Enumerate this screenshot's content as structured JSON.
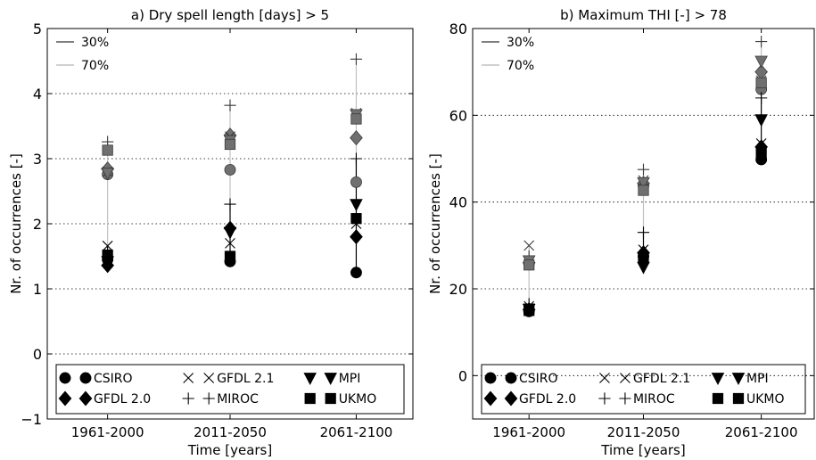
{
  "chart_data": [
    {
      "type": "scatter",
      "title": "a) Dry spell length [days] > 5",
      "xlabel": "Time [years]",
      "ylabel": "Nr. of occurrences [-]",
      "ylim": [
        -1,
        5
      ],
      "yticks": [
        "−1",
        "0",
        "1",
        "2",
        "3",
        "4",
        "5"
      ],
      "categories": [
        "1961-2000",
        "2011-2050",
        "2061-2100"
      ],
      "grid": "horizontal dotted",
      "legend_lines": [
        {
          "label": "30%",
          "color": "#555555"
        },
        {
          "label": "70%",
          "color": "#c0c0c0"
        }
      ],
      "series": [
        {
          "name": "CSIRO",
          "marker": "circle",
          "p30": [
            1.45,
            1.42,
            1.25
          ],
          "p70": [
            2.76,
            2.83,
            2.64
          ]
        },
        {
          "name": "GFDL 2.0",
          "marker": "diamond",
          "p30": [
            1.36,
            1.93,
            1.8
          ],
          "p70": [
            2.84,
            3.36,
            3.32
          ]
        },
        {
          "name": "GFDL 2.1",
          "marker": "x",
          "p30": [
            1.66,
            1.7,
            2.0
          ],
          "p70": [
            2.8,
            3.34,
            3.7
          ]
        },
        {
          "name": "MIROC",
          "marker": "plus",
          "p30": [
            1.5,
            2.3,
            3.0
          ],
          "p70": [
            3.26,
            3.82,
            4.53
          ]
        },
        {
          "name": "MPI",
          "marker": "triangle-down",
          "p30": [
            1.42,
            1.87,
            2.3
          ],
          "p70": [
            2.78,
            3.28,
            3.68
          ]
        },
        {
          "name": "UKMO",
          "marker": "square",
          "p30": [
            1.52,
            1.5,
            2.08
          ],
          "p70": [
            3.13,
            3.22,
            3.61
          ]
        }
      ]
    },
    {
      "type": "scatter",
      "title": "b) Maximum THI [-] > 78",
      "xlabel": "Time [years]",
      "ylabel": "Nr. of occurrences [-]",
      "ylim": [
        -10,
        80
      ],
      "yticks": [
        "0",
        "20",
        "40",
        "60",
        "80"
      ],
      "categories": [
        "1961-2000",
        "2011-2050",
        "2061-2100"
      ],
      "grid": "horizontal dotted",
      "legend_lines": [
        {
          "label": "30%",
          "color": "#555555"
        },
        {
          "label": "70%",
          "color": "#c0c0c0"
        }
      ],
      "series": [
        {
          "name": "CSIRO",
          "marker": "circle",
          "p30": [
            14.8,
            27.5,
            49.8
          ],
          "p70": [
            25.8,
            43.8,
            66.0
          ]
        },
        {
          "name": "GFDL 2.0",
          "marker": "diamond",
          "p30": [
            15.2,
            28.3,
            52.7
          ],
          "p70": [
            26.0,
            44.3,
            70.0
          ]
        },
        {
          "name": "GFDL 2.1",
          "marker": "x",
          "p30": [
            16.0,
            29.0,
            53.5
          ],
          "p70": [
            30.0,
            45.0,
            68.0
          ]
        },
        {
          "name": "MIROC",
          "marker": "plus",
          "p30": [
            16.5,
            33.0,
            64.0
          ],
          "p70": [
            27.5,
            47.5,
            77.0
          ]
        },
        {
          "name": "MPI",
          "marker": "triangle-down",
          "p30": [
            15.3,
            25.0,
            59.0
          ],
          "p70": [
            26.5,
            44.5,
            72.5
          ]
        },
        {
          "name": "UKMO",
          "marker": "square",
          "p30": [
            15.0,
            27.0,
            51.5
          ],
          "p70": [
            25.5,
            42.7,
            67.5
          ]
        }
      ]
    }
  ]
}
